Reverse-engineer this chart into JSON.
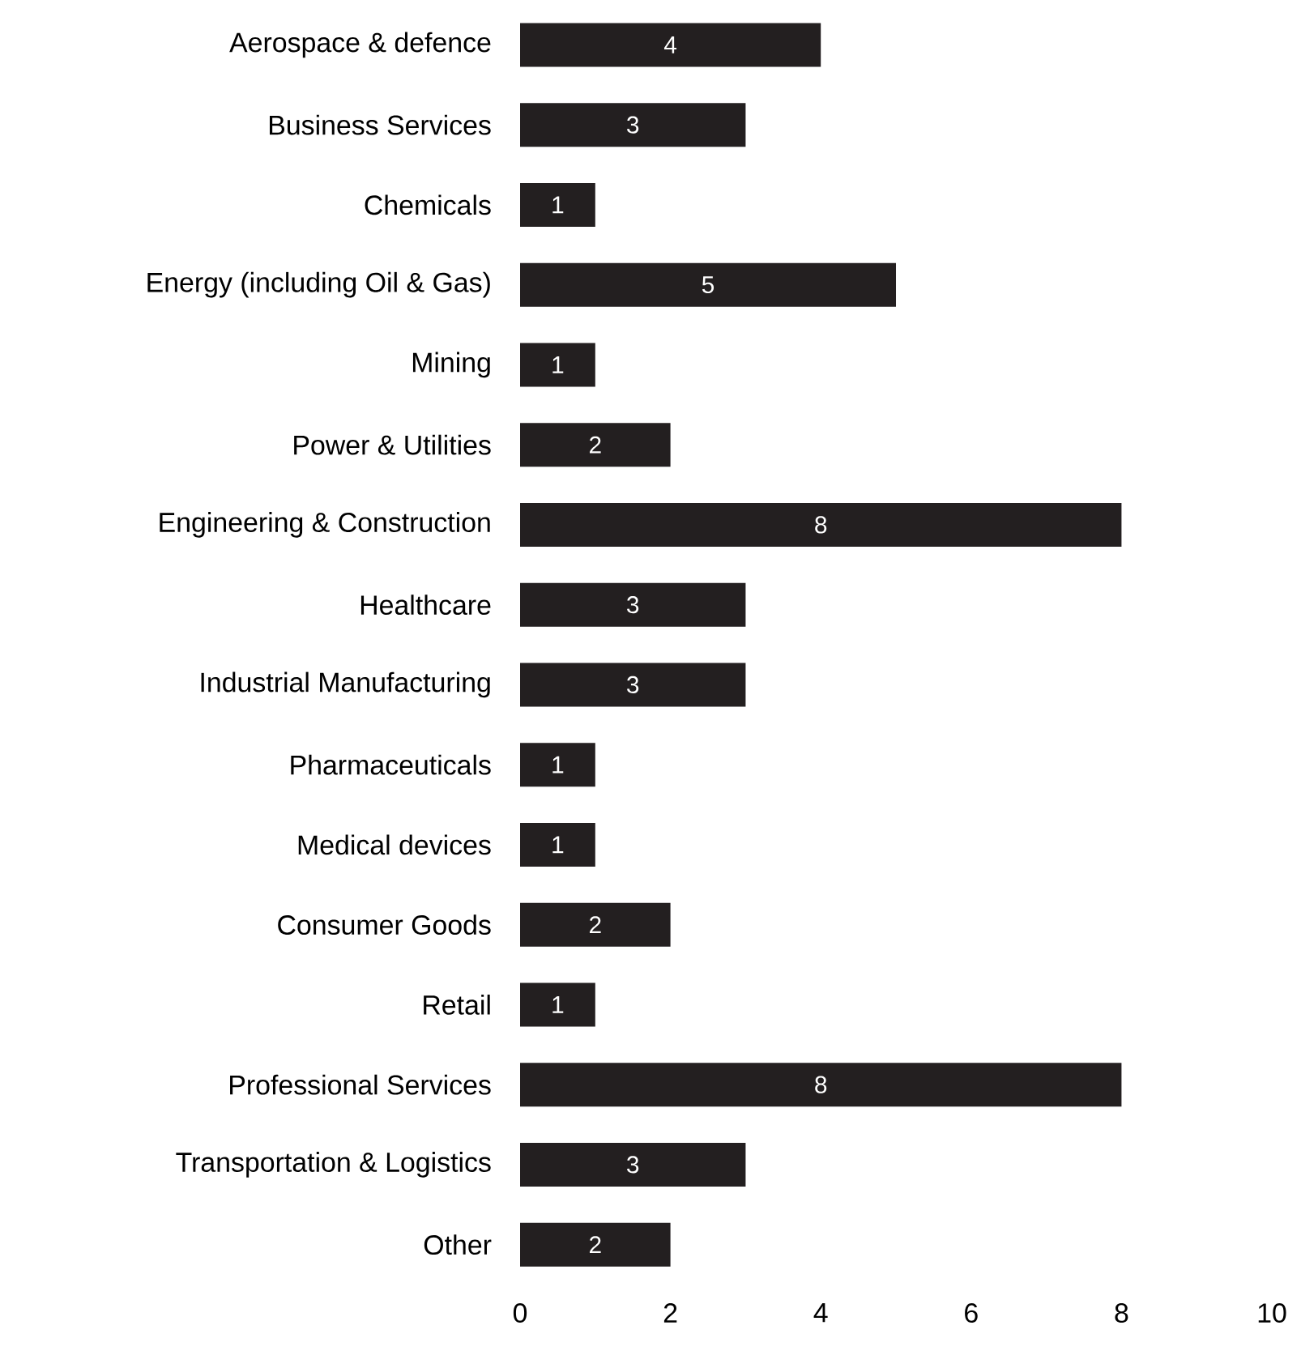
{
  "chart_data": {
    "type": "bar",
    "orientation": "horizontal",
    "categories": [
      "Aerospace & defence",
      "Business Services",
      "Chemicals",
      "Energy (including Oil & Gas)",
      "Mining",
      "Power & Utilities",
      "Engineering & Construction",
      "Healthcare",
      "Industrial Manufacturing",
      "Pharmaceuticals",
      "Medical devices",
      "Consumer Goods",
      "Retail",
      "Professional Services",
      "Transportation & Logistics",
      "Other"
    ],
    "values": [
      4,
      3,
      1,
      5,
      1,
      2,
      8,
      3,
      3,
      1,
      1,
      2,
      1,
      8,
      3,
      2
    ],
    "color": "#231f20",
    "xlim": [
      0,
      10
    ],
    "xticks": [
      0,
      2,
      4,
      6,
      8,
      10
    ],
    "data_labels": true
  }
}
